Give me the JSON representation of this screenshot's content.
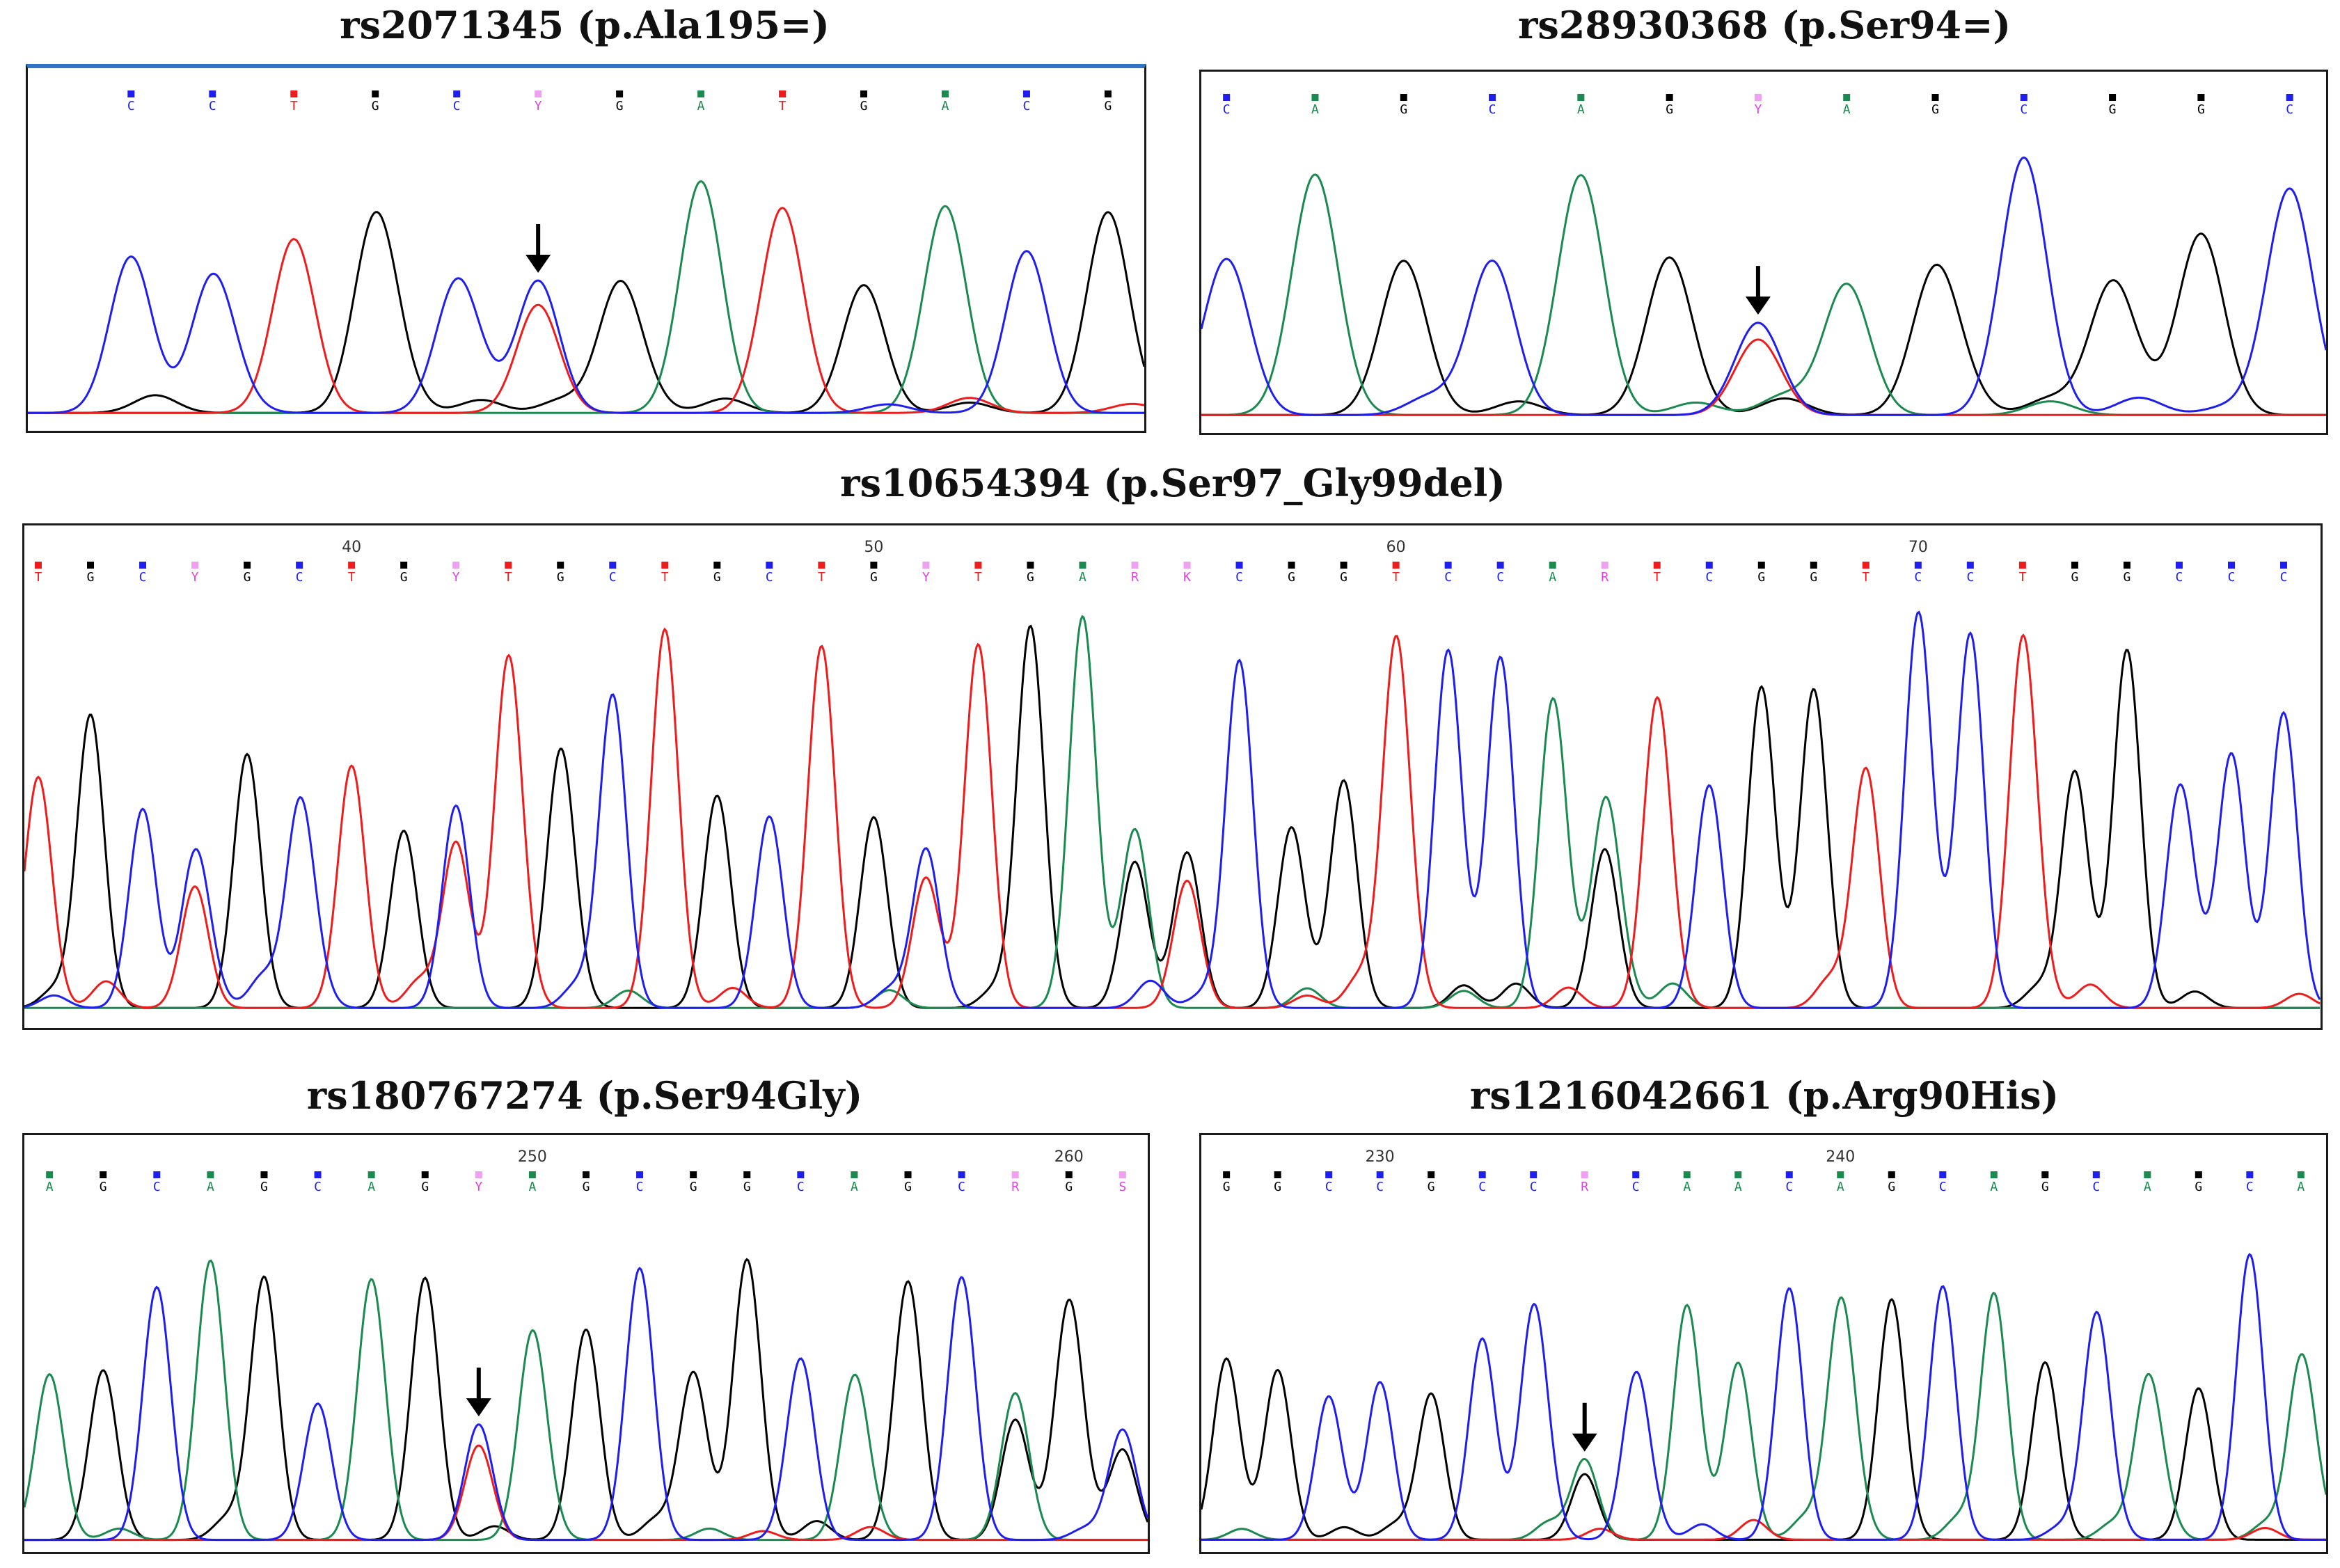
{
  "figure": {
    "colors": {
      "A": "#1a8a4f",
      "C": "#1e1ef0",
      "G": "#000000",
      "T": "#ee1c1c",
      "ambiguous": "#e040e0",
      "arrow": "#000000"
    },
    "panels": [
      {
        "id": "p1",
        "title": "rs2071345 (p.Ala195=)",
        "bases": [
          "C",
          "C",
          "T",
          "G",
          "C",
          "Y",
          "G",
          "A",
          "T",
          "G",
          "A",
          "C",
          "G"
        ],
        "position_labels": [],
        "arrow_at_base": 5
      },
      {
        "id": "p2",
        "title": "rs28930368 (p.Ser94=)",
        "bases": [
          "C",
          "A",
          "G",
          "C",
          "A",
          "G",
          "Y",
          "A",
          "G",
          "C",
          "G",
          "G",
          "C"
        ],
        "position_labels": [],
        "arrow_at_base": 6
      },
      {
        "id": "p3",
        "title": "rs10654394 (p.Ser97_Gly99del)",
        "bases": [
          "T",
          "G",
          "C",
          "Y",
          "G",
          "C",
          "T",
          "G",
          "Y",
          "T",
          "G",
          "C",
          "T",
          "G",
          "C",
          "T",
          "G",
          "Y",
          "T",
          "G",
          "A",
          "R",
          "K",
          "C",
          "G",
          "G",
          "T",
          "C",
          "C",
          "A",
          "R",
          "T",
          "C",
          "G",
          "G",
          "T",
          "C",
          "C",
          "T",
          "G",
          "G",
          "C",
          "C",
          "C"
        ],
        "position_labels": [
          {
            "text": "40",
            "at_base": 6
          },
          {
            "text": "50",
            "at_base": 16
          },
          {
            "text": "60",
            "at_base": 26
          },
          {
            "text": "70",
            "at_base": 36
          }
        ],
        "arrow_at_base": null
      },
      {
        "id": "p4",
        "title": "rs180767274 (p.Ser94Gly)",
        "bases": [
          "A",
          "G",
          "C",
          "A",
          "G",
          "C",
          "A",
          "G",
          "Y",
          "A",
          "G",
          "C",
          "G",
          "G",
          "C",
          "A",
          "G",
          "C",
          "R",
          "G",
          "S"
        ],
        "position_labels": [
          {
            "text": "250",
            "at_base": 9
          },
          {
            "text": "260",
            "at_base": 19
          }
        ],
        "arrow_at_base": 8
      },
      {
        "id": "p5",
        "title": "rs1216042661 (p.Arg90His)",
        "bases": [
          "G",
          "G",
          "C",
          "C",
          "G",
          "C",
          "C",
          "R",
          "C",
          "A",
          "A",
          "C",
          "A",
          "G",
          "C",
          "A",
          "G",
          "C",
          "A",
          "G",
          "C",
          "A"
        ],
        "position_labels": [
          {
            "text": "230",
            "at_base": 3
          },
          {
            "text": "240",
            "at_base": 12
          }
        ],
        "arrow_at_base": 7
      }
    ]
  }
}
